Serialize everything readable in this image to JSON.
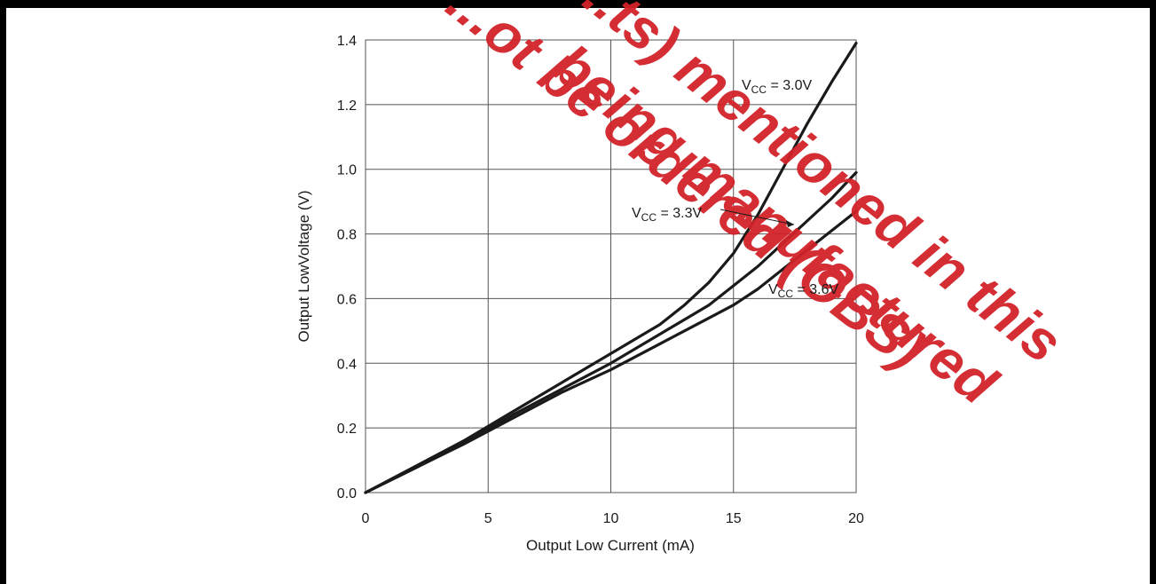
{
  "chart_data": {
    "type": "line",
    "xlabel": "Output Low Current (mA)",
    "ylabel": "Output LowVoltage (V)",
    "xlim": [
      0,
      20
    ],
    "ylim": [
      0,
      1.4
    ],
    "xticks": [
      0,
      5,
      10,
      15,
      20
    ],
    "xtick_labels": [
      "0",
      "5",
      "10",
      "15",
      "20"
    ],
    "yticks": [
      0,
      0.2,
      0.4,
      0.6,
      0.8,
      1.0,
      1.2,
      1.4
    ],
    "ytick_labels": [
      "0.0",
      "0.2",
      "0.4",
      "0.6",
      "0.8",
      "1.0",
      "1.2",
      "1.4"
    ],
    "grid": true,
    "series": [
      {
        "name": "VCC = 3.0V",
        "label_main": "V",
        "label_sub": "CC",
        "label_tail": " = 3.0V",
        "x": [
          0,
          2,
          4,
          6,
          8,
          10,
          12,
          13,
          14,
          15,
          16,
          17,
          18,
          19,
          20
        ],
        "y": [
          0.0,
          0.08,
          0.16,
          0.25,
          0.34,
          0.43,
          0.52,
          0.58,
          0.65,
          0.74,
          0.86,
          1.0,
          1.14,
          1.27,
          1.39
        ]
      },
      {
        "name": "VCC = 3.3V",
        "label_main": "V",
        "label_sub": "CC",
        "label_tail": " = 3.3V",
        "x": [
          0,
          2,
          4,
          6,
          8,
          10,
          12,
          14,
          15,
          16,
          17,
          18,
          19,
          20
        ],
        "y": [
          0.0,
          0.075,
          0.155,
          0.24,
          0.32,
          0.4,
          0.49,
          0.58,
          0.64,
          0.7,
          0.77,
          0.84,
          0.91,
          0.99
        ]
      },
      {
        "name": "VCC = 3.6V",
        "label_main": "V",
        "label_sub": "CC",
        "label_tail": " = 3.6V",
        "x": [
          0,
          2,
          4,
          6,
          8,
          10,
          12,
          14,
          15,
          16,
          17,
          18,
          19,
          20
        ],
        "y": [
          0.0,
          0.075,
          0.15,
          0.23,
          0.31,
          0.38,
          0.46,
          0.54,
          0.58,
          0.63,
          0.69,
          0.75,
          0.81,
          0.87
        ]
      }
    ],
    "series_color": "#1a1a1a",
    "grid_color": "#555555"
  },
  "watermark": {
    "text": "…(or parts) longer being manufactured in this not be ordered (OBS)",
    "lines": [
      "...ger ...ts) mentioned in this",
      "...ot be ordered (OBS)",
      "being manufactured"
    ],
    "color": "#d2232a"
  }
}
